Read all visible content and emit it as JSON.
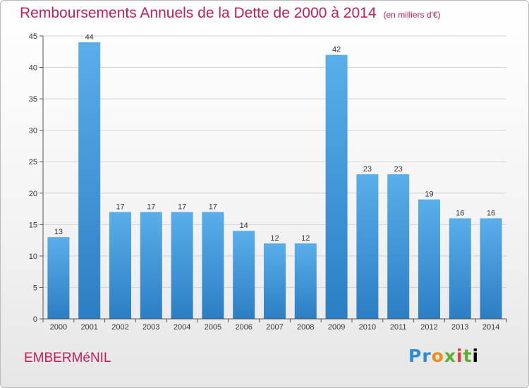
{
  "chart_data": {
    "type": "bar",
    "title": "Remboursements Annuels de la Dette de 2000 à 2014",
    "subtitle": "(en milliers d'€)",
    "categories": [
      "2000",
      "2001",
      "2002",
      "2003",
      "2004",
      "2005",
      "2006",
      "2007",
      "2008",
      "2009",
      "2010",
      "2011",
      "2012",
      "2013",
      "2014"
    ],
    "values": [
      13,
      44,
      17,
      17,
      17,
      17,
      14,
      12,
      12,
      42,
      23,
      23,
      19,
      16,
      16
    ],
    "ylim": [
      0,
      45
    ],
    "yticks": [
      0,
      5,
      10,
      15,
      20,
      25,
      30,
      35,
      40,
      45
    ],
    "grid": true,
    "bar_color_top": "#5aaeea",
    "bar_color_bottom": "#2c7ec4"
  },
  "footer": {
    "commune": "EMBERMéNIL",
    "brand_letters": [
      "P",
      "r",
      "o",
      "x",
      "i",
      "t",
      "i"
    ]
  }
}
